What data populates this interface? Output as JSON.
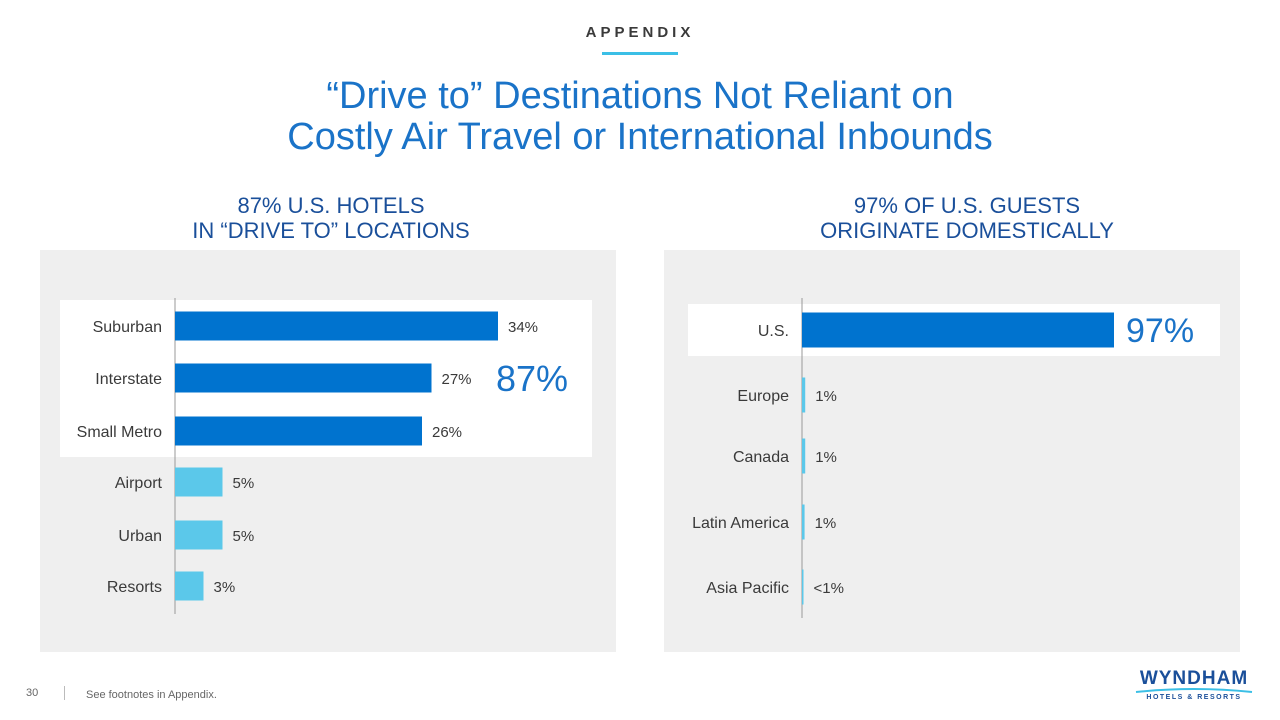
{
  "header": {
    "section_label": "APPENDIX",
    "title_line1": "“Drive to” Destinations Not Reliant on",
    "title_line2": "Costly Air Travel or International Inbounds"
  },
  "colors": {
    "dark_bar": "#0073cf",
    "light_bar": "#5bc8ea",
    "highlight_bg": "#ffffff",
    "panel_bg": "#efefef",
    "title_blue": "#1a73c8"
  },
  "chart_data": [
    {
      "type": "bar",
      "orientation": "horizontal",
      "title_line1": "87% U.S. HOTELS",
      "title_line2": "IN “DRIVE TO” LOCATIONS",
      "categories": [
        "Suburban",
        "Interstate",
        "Small Metro",
        "Airport",
        "Urban",
        "Resorts"
      ],
      "values": [
        34,
        27,
        26,
        5,
        5,
        3
      ],
      "value_labels": [
        "34%",
        "27%",
        "26%",
        "5%",
        "5%",
        "3%"
      ],
      "highlighted": [
        true,
        true,
        true,
        false,
        false,
        false
      ],
      "callout": "87%",
      "xlim": [
        0,
        36
      ]
    },
    {
      "type": "bar",
      "orientation": "horizontal",
      "title_line1": "97% OF U.S. GUESTS",
      "title_line2": "ORIGINATE DOMESTICALLY",
      "categories": [
        "U.S.",
        "Europe",
        "Canada",
        "Latin America",
        "Asia Pacific"
      ],
      "values": [
        97,
        1,
        1,
        0.8,
        0.3
      ],
      "value_labels": [
        "97%",
        "1%",
        "1%",
        "1%",
        "<1%"
      ],
      "highlighted": [
        true,
        false,
        false,
        false,
        false
      ],
      "xlim": [
        0,
        100
      ]
    }
  ],
  "footer": {
    "page_number": "30",
    "footnote": "See footnotes in Appendix.",
    "logo_text": "WYNDHAM",
    "logo_subtext": "HOTELS & RESORTS"
  }
}
